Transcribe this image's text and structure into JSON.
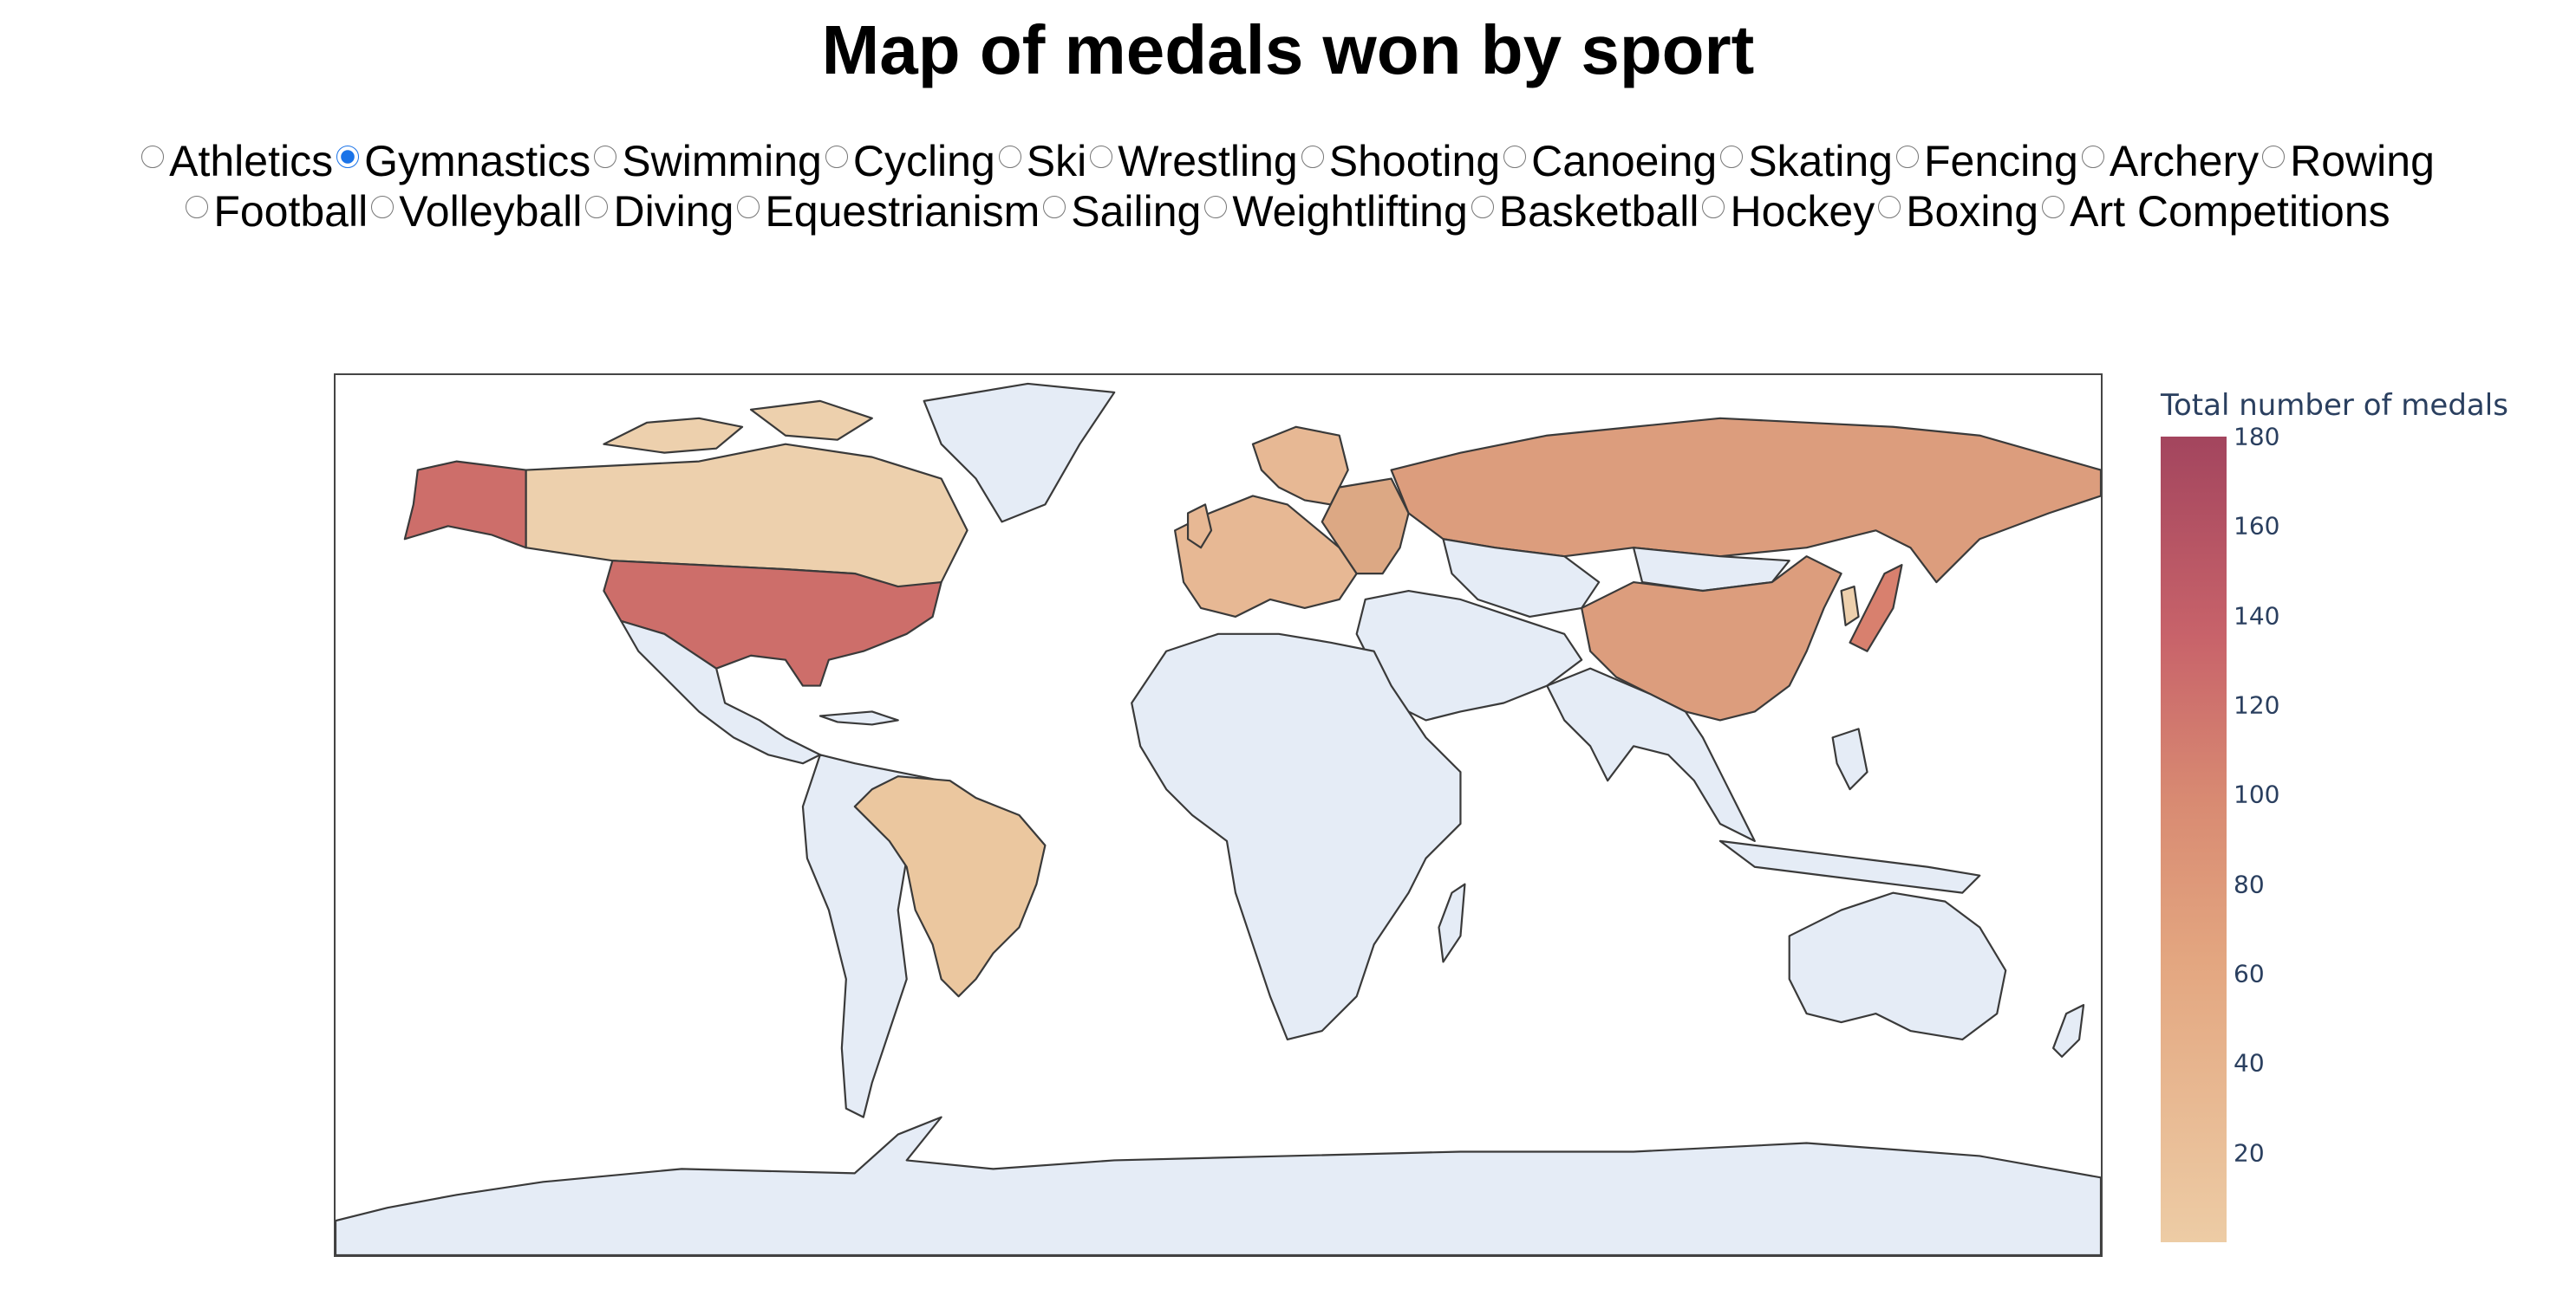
{
  "title": "Map of medals won by sport",
  "sports_row1": [
    "Athletics",
    "Gymnastics",
    "Swimming",
    "Cycling",
    "Ski",
    "Wrestling",
    "Shooting",
    "Canoeing",
    "Skating",
    "Fencing",
    "Archery",
    "Rowing"
  ],
  "sports_row2": [
    "Football",
    "Volleyball",
    "Diving",
    "Equestrianism",
    "Sailing",
    "Weightlifting",
    "Basketball",
    "Hockey",
    "Boxing",
    "Art Competitions"
  ],
  "selected_sport": "Gymnastics",
  "colorbar": {
    "title": "Total number of medals",
    "min": 0,
    "max": 180,
    "ticks": [
      "180",
      "160",
      "140",
      "120",
      "100",
      "80",
      "60",
      "40",
      "20"
    ],
    "colors": [
      "#edcca5",
      "#e3a680",
      "#d88a72",
      "#c8636a",
      "#a3455e"
    ]
  },
  "map_colors": {
    "no_data": "#e5ecf6",
    "border": "#3a3a3a",
    "usa": "#cd6e6a",
    "russia": "#dc9d7d",
    "china": "#dc9d7d",
    "japan": "#d8806e",
    "canada": "#edd0ad",
    "brazil": "#ebc79f",
    "europe": "#e7b894"
  }
}
